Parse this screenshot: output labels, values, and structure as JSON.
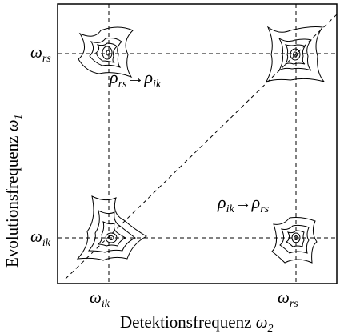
{
  "axes": {
    "x_label": "Detektionsfrequenz",
    "x_symbol": "ω",
    "x_subscript": "2",
    "y_label": "Evolutionsfrequenz",
    "y_symbol": "ω",
    "y_subscript": "1"
  },
  "ticks": {
    "x": [
      {
        "symbol": "ω",
        "sub": "ik"
      },
      {
        "symbol": "ω",
        "sub": "rs"
      }
    ],
    "y": [
      {
        "symbol": "ω",
        "sub": "rs"
      },
      {
        "symbol": "ω",
        "sub": "ik"
      }
    ]
  },
  "annotations": [
    {
      "from": "ρ",
      "from_sub": "rs",
      "arrow": "→",
      "to": "ρ",
      "to_sub": "ik"
    },
    {
      "from": "ρ",
      "from_sub": "ik",
      "arrow": "→",
      "to": "ρ",
      "to_sub": "rs"
    }
  ],
  "peaks": [
    {
      "name": "ik-rs"
    },
    {
      "name": "rs-rs"
    },
    {
      "name": "ik-ik"
    },
    {
      "name": "rs-ik"
    }
  ]
}
